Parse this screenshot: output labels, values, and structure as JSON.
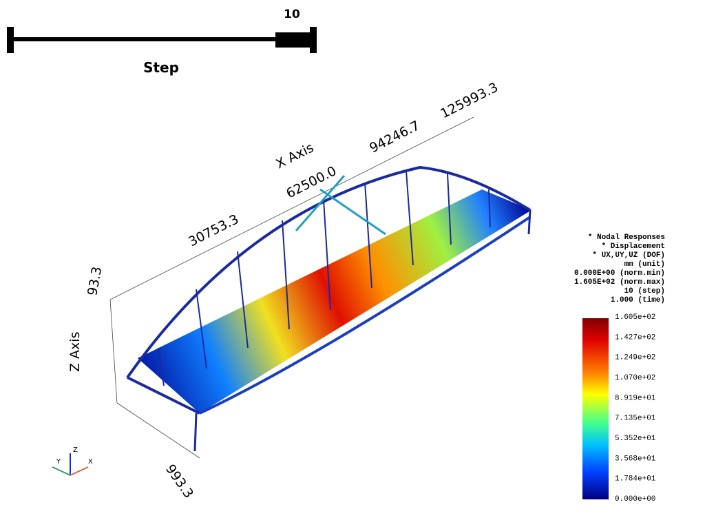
{
  "slider": {
    "value": "10",
    "label": "Step"
  },
  "x_axis": {
    "title": "X Axis",
    "ticks": [
      "30753.3",
      "62500.0",
      "94246.7",
      "125993.3"
    ]
  },
  "z_axis": {
    "title": "Z Axis",
    "tick": "93.3"
  },
  "y_axis": {
    "tick": "993.3"
  },
  "info": [
    "* Nodal Responses",
    "* Displacement",
    "* UX,UY,UZ (DOF)",
    "mm (unit)",
    "0.000E+00 (norm.min)",
    "1.605E+02 (norm.max)",
    "10 (step)",
    "1.000 (time)"
  ],
  "colorbar": {
    "ticks": [
      "1.605e+02",
      "1.427e+02",
      "1.249e+02",
      "1.070e+02",
      "8.919e+01",
      "7.135e+01",
      "5.352e+01",
      "3.568e+01",
      "1.784e+01",
      "0.000e+00"
    ]
  },
  "orientation": {
    "x": "X",
    "y": "Y",
    "z": "Z"
  }
}
